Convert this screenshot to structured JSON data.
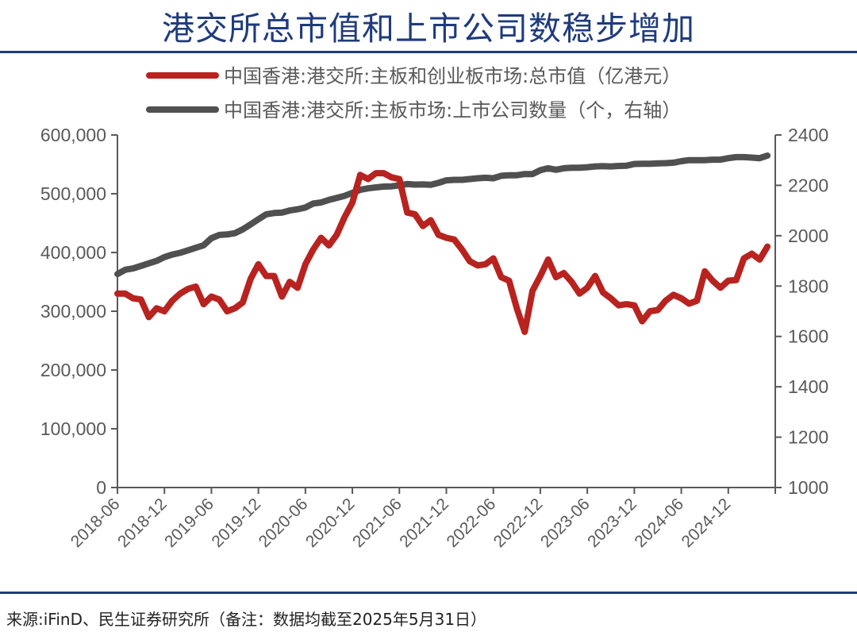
{
  "title": "港交所总市值和上市公司数稳步增加",
  "source": "来源:iFinD、民生证券研究所（备注：数据均截至2025年5月31日）",
  "chart_data": {
    "type": "line",
    "title": "",
    "legend_position": "top",
    "grid": false,
    "x": [
      "2018-06",
      "2018-07",
      "2018-08",
      "2018-09",
      "2018-10",
      "2018-11",
      "2018-12",
      "2019-01",
      "2019-02",
      "2019-03",
      "2019-04",
      "2019-05",
      "2019-06",
      "2019-07",
      "2019-08",
      "2019-09",
      "2019-10",
      "2019-11",
      "2019-12",
      "2020-01",
      "2020-02",
      "2020-03",
      "2020-04",
      "2020-05",
      "2020-06",
      "2020-07",
      "2020-08",
      "2020-09",
      "2020-10",
      "2020-11",
      "2020-12",
      "2021-01",
      "2021-02",
      "2021-03",
      "2021-04",
      "2021-05",
      "2021-06",
      "2021-07",
      "2021-08",
      "2021-09",
      "2021-10",
      "2021-11",
      "2021-12",
      "2022-01",
      "2022-02",
      "2022-03",
      "2022-04",
      "2022-05",
      "2022-06",
      "2022-07",
      "2022-08",
      "2022-09",
      "2022-10",
      "2022-11",
      "2022-12",
      "2023-01",
      "2023-02",
      "2023-03",
      "2023-04",
      "2023-05",
      "2023-06",
      "2023-07",
      "2023-08",
      "2023-09",
      "2023-10",
      "2023-11",
      "2023-12",
      "2024-01",
      "2024-02",
      "2024-03",
      "2024-04",
      "2024-05",
      "2024-06",
      "2024-07",
      "2024-08",
      "2024-09",
      "2024-10",
      "2024-11",
      "2024-12",
      "2025-01",
      "2025-02",
      "2025-03",
      "2025-04",
      "2025-05"
    ],
    "x_ticks": [
      "2018-06",
      "2018-12",
      "2019-06",
      "2019-12",
      "2020-06",
      "2020-12",
      "2021-06",
      "2021-12",
      "2022-06",
      "2022-12",
      "2023-06",
      "2023-12",
      "2024-06",
      "2024-12"
    ],
    "x_range": [
      "2018-06",
      "2025-06"
    ],
    "y_left": {
      "ylim": [
        0,
        600000
      ],
      "ticks": [
        "0",
        "100,000",
        "200,000",
        "300,000",
        "400,000",
        "500,000",
        "600,000"
      ]
    },
    "y_right": {
      "ylim": [
        1000,
        2400
      ],
      "ticks": [
        "1000",
        "1200",
        "1400",
        "1600",
        "1800",
        "2000",
        "2200",
        "2400"
      ]
    },
    "series": [
      {
        "name": "中国香港:港交所:主板和创业板市场:总市值（亿港元）",
        "axis": "left",
        "color": "#b8231f",
        "values": [
          330000,
          330000,
          322000,
          320000,
          290000,
          305000,
          300000,
          318000,
          330000,
          338000,
          342000,
          312000,
          325000,
          320000,
          300000,
          305000,
          315000,
          355000,
          380000,
          360000,
          360000,
          325000,
          350000,
          340000,
          380000,
          405000,
          425000,
          412000,
          430000,
          460000,
          485000,
          532000,
          525000,
          535000,
          535000,
          528000,
          525000,
          468000,
          465000,
          445000,
          455000,
          430000,
          425000,
          422000,
          405000,
          385000,
          378000,
          380000,
          390000,
          358000,
          352000,
          305000,
          265000,
          335000,
          360000,
          388000,
          358000,
          365000,
          350000,
          330000,
          340000,
          360000,
          332000,
          322000,
          310000,
          312000,
          310000,
          283000,
          300000,
          302000,
          318000,
          328000,
          322000,
          313000,
          318000,
          368000,
          352000,
          340000,
          352000,
          353000,
          390000,
          398000,
          388000,
          410000
        ]
      },
      {
        "name": "中国香港:港交所:主板市场:上市公司数量（个，右轴）",
        "axis": "right",
        "color": "#505050",
        "values": [
          1848,
          1865,
          1870,
          1880,
          1890,
          1900,
          1915,
          1925,
          1932,
          1942,
          1952,
          1962,
          1990,
          2003,
          2005,
          2010,
          2025,
          2045,
          2065,
          2085,
          2090,
          2092,
          2100,
          2105,
          2112,
          2128,
          2132,
          2142,
          2150,
          2158,
          2170,
          2182,
          2188,
          2192,
          2195,
          2196,
          2200,
          2205,
          2203,
          2204,
          2202,
          2210,
          2220,
          2222,
          2222,
          2225,
          2228,
          2230,
          2228,
          2238,
          2240,
          2240,
          2245,
          2245,
          2260,
          2268,
          2262,
          2268,
          2270,
          2270,
          2272,
          2275,
          2276,
          2275,
          2277,
          2278,
          2285,
          2286,
          2286,
          2287,
          2288,
          2290,
          2296,
          2300,
          2300,
          2300,
          2302,
          2302,
          2308,
          2312,
          2312,
          2310,
          2308,
          2318
        ]
      }
    ]
  }
}
